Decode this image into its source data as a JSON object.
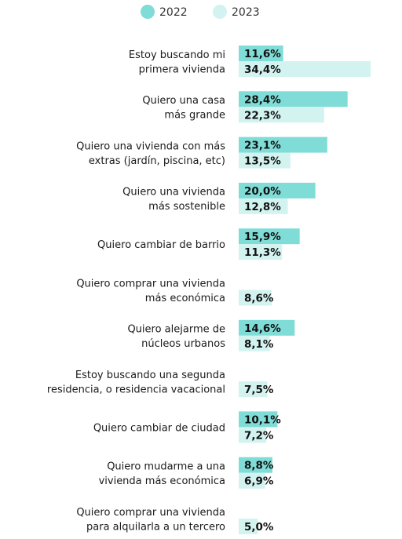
{
  "chart_data": {
    "type": "bar",
    "orientation": "horizontal",
    "legend_position": "top",
    "grid": false,
    "xlim": [
      0,
      40
    ],
    "categories": [
      [
        "Estoy buscando mi",
        "primera vivienda"
      ],
      [
        "Quiero una casa",
        "más grande"
      ],
      [
        "Quiero una vivienda con más",
        "extras (jardín, piscina, etc)"
      ],
      [
        "Quiero una vivienda",
        "más sostenible"
      ],
      [
        "Quiero cambiar de barrio"
      ],
      [
        "Quiero comprar una vivienda",
        "más económica"
      ],
      [
        "Quiero alejarme de",
        "núcleos urbanos"
      ],
      [
        "Estoy buscando una segunda",
        "residencia, o residencia vacacional"
      ],
      [
        "Quiero cambiar de ciudad"
      ],
      [
        "Quiero mudarme a una",
        "vivienda más económica"
      ],
      [
        "Quiero comprar una vivienda",
        "para alquilarla a un tercero"
      ]
    ],
    "series": [
      {
        "name": "2022",
        "color": "#7fdcd6",
        "values": [
          11.6,
          28.4,
          23.1,
          20.0,
          15.9,
          null,
          14.6,
          null,
          10.1,
          8.8,
          null
        ],
        "labels": [
          "11,6%",
          "28,4%",
          "23,1%",
          "20,0%",
          "15,9%",
          null,
          "14,6%",
          null,
          "10,1%",
          "8,8%",
          null
        ]
      },
      {
        "name": "2023",
        "color": "#d3f3f1",
        "values": [
          34.4,
          22.3,
          13.5,
          12.8,
          11.3,
          8.6,
          8.1,
          7.5,
          7.2,
          6.9,
          5.0
        ],
        "labels": [
          "34,4%",
          "22,3%",
          "13,5%",
          "12,8%",
          "11,3%",
          "8,6%",
          "8,1%",
          "7,5%",
          "7,2%",
          "6,9%",
          "5,0%"
        ]
      }
    ]
  }
}
